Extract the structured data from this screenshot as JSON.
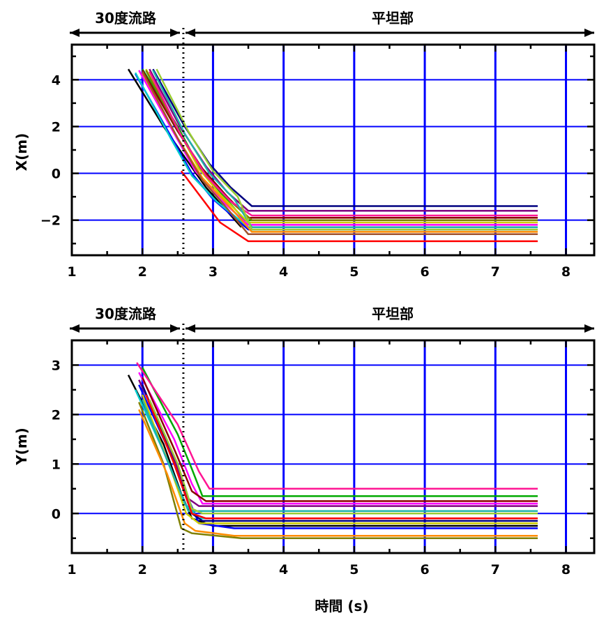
{
  "figure": {
    "xlabel": "時間 (s)",
    "regions": {
      "slope_label": "30度流路",
      "flat_label": "平坦部",
      "boundary_x": 2.58
    }
  },
  "chart_data": [
    {
      "type": "line",
      "ylabel": "X(m)",
      "xlim": [
        1,
        8.4
      ],
      "ylim": [
        -3.5,
        5.5
      ],
      "xticks": [
        1,
        2,
        3,
        4,
        5,
        6,
        7,
        8
      ],
      "yticks": [
        -2,
        0,
        2,
        4
      ],
      "grid": true,
      "series": [
        {
          "color": "#000000",
          "points": [
            [
              1.8,
              4.45
            ],
            [
              2.3,
              2.0
            ],
            [
              2.55,
              0.9
            ],
            [
              2.9,
              -0.6
            ],
            [
              3.4,
              -2.3
            ]
          ]
        },
        {
          "color": "#0000ff",
          "points": [
            [
              1.9,
              4.25
            ],
            [
              2.4,
              1.6
            ],
            [
              2.7,
              0.0
            ],
            [
              3.0,
              -1.1
            ],
            [
              3.5,
              -2.4
            ],
            [
              7.6,
              -2.4
            ]
          ]
        },
        {
          "color": "#00aa00",
          "points": [
            [
              2.0,
              4.45
            ],
            [
              2.5,
              2.0
            ],
            [
              2.8,
              0.3
            ],
            [
              3.1,
              -0.8
            ],
            [
              3.45,
              -2.0
            ],
            [
              7.6,
              -2.0
            ]
          ]
        },
        {
          "color": "#ff00ff",
          "points": [
            [
              1.95,
              4.4
            ],
            [
              2.45,
              1.7
            ],
            [
              2.75,
              0.1
            ],
            [
              3.1,
              -1.1
            ],
            [
              3.5,
              -2.2
            ],
            [
              7.6,
              -2.2
            ]
          ]
        },
        {
          "color": "#00cccc",
          "points": [
            [
              1.9,
              4.3
            ],
            [
              2.4,
              1.5
            ],
            [
              2.7,
              -0.1
            ],
            [
              3.05,
              -1.2
            ],
            [
              3.5,
              -2.3
            ],
            [
              7.6,
              -2.3
            ]
          ]
        },
        {
          "color": "#cccc00",
          "points": [
            [
              2.05,
              4.45
            ],
            [
              2.5,
              1.9
            ],
            [
              2.8,
              0.2
            ],
            [
              3.1,
              -0.9
            ],
            [
              3.5,
              -2.1
            ],
            [
              7.6,
              -2.1
            ]
          ]
        },
        {
          "color": "#8b0000",
          "points": [
            [
              2.0,
              4.4
            ],
            [
              2.5,
              1.8
            ],
            [
              2.85,
              0.2
            ],
            [
              3.2,
              -1.0
            ],
            [
              3.5,
              -1.9
            ],
            [
              7.6,
              -1.9
            ]
          ]
        },
        {
          "color": "#800080",
          "points": [
            [
              2.1,
              4.45
            ],
            [
              2.55,
              1.9
            ],
            [
              2.9,
              0.3
            ],
            [
              3.2,
              -0.8
            ],
            [
              3.5,
              -1.6
            ],
            [
              7.6,
              -1.6
            ]
          ]
        },
        {
          "color": "#000080",
          "points": [
            [
              2.15,
              4.45
            ],
            [
              2.6,
              2.0
            ],
            [
              2.95,
              0.4
            ],
            [
              3.25,
              -0.6
            ],
            [
              3.55,
              -1.4
            ],
            [
              7.6,
              -1.4
            ]
          ]
        },
        {
          "color": "#808000",
          "points": [
            [
              2.05,
              4.4
            ],
            [
              2.55,
              1.6
            ],
            [
              2.9,
              -0.1
            ],
            [
              3.25,
              -1.2
            ],
            [
              3.55,
              -2.0
            ],
            [
              7.6,
              -2.0
            ]
          ]
        },
        {
          "color": "#ff8c00",
          "points": [
            [
              2.0,
              4.3
            ],
            [
              2.5,
              1.5
            ],
            [
              2.85,
              -0.2
            ],
            [
              3.2,
              -1.3
            ],
            [
              3.55,
              -2.5
            ],
            [
              7.6,
              -2.5
            ]
          ]
        },
        {
          "color": "#ff1493",
          "points": [
            [
              2.1,
              4.35
            ],
            [
              2.55,
              1.6
            ],
            [
              2.9,
              -0.1
            ],
            [
              3.25,
              -1.2
            ],
            [
              3.55,
              -1.8
            ],
            [
              7.6,
              -1.8
            ]
          ]
        },
        {
          "color": "#20b2aa",
          "points": [
            [
              2.15,
              4.4
            ],
            [
              2.6,
              1.7
            ],
            [
              2.95,
              0.0
            ],
            [
              3.3,
              -1.1
            ],
            [
              3.55,
              -2.3
            ],
            [
              7.6,
              -2.3
            ]
          ]
        },
        {
          "color": "#9acd32",
          "points": [
            [
              2.2,
              4.45
            ],
            [
              2.65,
              1.8
            ],
            [
              3.0,
              0.1
            ],
            [
              3.35,
              -1.0
            ],
            [
              3.55,
              -2.4
            ],
            [
              7.6,
              -2.4
            ]
          ]
        },
        {
          "color": "#a0522d",
          "points": [
            [
              2.0,
              4.35
            ],
            [
              2.5,
              1.5
            ],
            [
              2.85,
              -0.3
            ],
            [
              3.2,
              -1.5
            ],
            [
              3.5,
              -2.6
            ],
            [
              7.6,
              -2.6
            ]
          ]
        },
        {
          "color": "#ff0000",
          "points": [
            [
              2.55,
              0.1
            ],
            [
              2.8,
              -0.9
            ],
            [
              3.1,
              -2.1
            ],
            [
              3.5,
              -2.9
            ],
            [
              7.6,
              -2.9
            ]
          ]
        }
      ]
    },
    {
      "type": "line",
      "ylabel": "Y(m)",
      "xlim": [
        1,
        8.4
      ],
      "ylim": [
        -0.8,
        3.5
      ],
      "xticks": [
        1,
        2,
        3,
        4,
        5,
        6,
        7,
        8
      ],
      "yticks": [
        0,
        1,
        2,
        3
      ],
      "grid": true,
      "series": [
        {
          "color": "#000000",
          "points": [
            [
              1.8,
              2.8
            ],
            [
              2.3,
              1.4
            ],
            [
              2.55,
              0.4
            ],
            [
              2.7,
              -0.1
            ],
            [
              3.0,
              -0.25
            ],
            [
              7.6,
              -0.25
            ]
          ]
        },
        {
          "color": "#0000ff",
          "points": [
            [
              1.95,
              2.6
            ],
            [
              2.4,
              1.2
            ],
            [
              2.65,
              0.3
            ],
            [
              2.8,
              -0.2
            ],
            [
              3.3,
              -0.3
            ],
            [
              7.6,
              -0.3
            ]
          ]
        },
        {
          "color": "#00aa00",
          "points": [
            [
              2.0,
              2.95
            ],
            [
              2.5,
              1.6
            ],
            [
              2.7,
              0.9
            ],
            [
              2.85,
              0.35
            ],
            [
              7.6,
              0.35
            ]
          ]
        },
        {
          "color": "#ff00ff",
          "points": [
            [
              1.95,
              2.85
            ],
            [
              2.45,
              1.5
            ],
            [
              2.7,
              0.6
            ],
            [
              2.85,
              0.2
            ],
            [
              7.6,
              0.2
            ]
          ]
        },
        {
          "color": "#00cccc",
          "points": [
            [
              1.9,
              2.5
            ],
            [
              2.35,
              1.1
            ],
            [
              2.6,
              0.2
            ],
            [
              2.8,
              -0.1
            ],
            [
              7.6,
              -0.1
            ]
          ]
        },
        {
          "color": "#cccc00",
          "points": [
            [
              2.0,
              2.4
            ],
            [
              2.4,
              0.9
            ],
            [
              2.62,
              0.0
            ],
            [
              2.8,
              -0.2
            ],
            [
              7.6,
              -0.2
            ]
          ]
        },
        {
          "color": "#8b0000",
          "points": [
            [
              2.0,
              2.75
            ],
            [
              2.45,
              1.3
            ],
            [
              2.7,
              0.45
            ],
            [
              2.9,
              0.25
            ],
            [
              7.6,
              0.25
            ]
          ]
        },
        {
          "color": "#800080",
          "points": [
            [
              1.95,
              2.7
            ],
            [
              2.4,
              1.3
            ],
            [
              2.65,
              0.3
            ],
            [
              2.8,
              0.15
            ],
            [
              7.6,
              0.15
            ]
          ]
        },
        {
          "color": "#000080",
          "points": [
            [
              2.0,
              2.6
            ],
            [
              2.4,
              1.2
            ],
            [
              2.7,
              0.0
            ],
            [
              2.85,
              -0.15
            ],
            [
              7.6,
              -0.15
            ]
          ]
        },
        {
          "color": "#808000",
          "points": [
            [
              1.95,
              2.25
            ],
            [
              2.3,
              1.0
            ],
            [
              2.55,
              -0.3
            ],
            [
              2.7,
              -0.4
            ],
            [
              3.4,
              -0.5
            ],
            [
              7.6,
              -0.5
            ]
          ]
        },
        {
          "color": "#ff8c00",
          "points": [
            [
              1.95,
              2.1
            ],
            [
              2.35,
              0.8
            ],
            [
              2.6,
              -0.2
            ],
            [
              2.75,
              -0.35
            ],
            [
              3.3,
              -0.45
            ],
            [
              7.6,
              -0.45
            ]
          ]
        },
        {
          "color": "#ff1493",
          "points": [
            [
              1.92,
              3.05
            ],
            [
              2.5,
              1.8
            ],
            [
              2.8,
              0.85
            ],
            [
              2.95,
              0.5
            ],
            [
              7.6,
              0.5
            ]
          ]
        },
        {
          "color": "#20b2aa",
          "points": [
            [
              2.0,
              2.3
            ],
            [
              2.4,
              0.9
            ],
            [
              2.65,
              0.05
            ],
            [
              2.85,
              0.05
            ],
            [
              7.6,
              0.05
            ]
          ]
        },
        {
          "color": "#ff0000",
          "points": [
            [
              2.05,
              2.4
            ],
            [
              2.45,
              1.0
            ],
            [
              2.7,
              0.0
            ],
            [
              2.9,
              -0.1
            ],
            [
              7.6,
              -0.1
            ]
          ]
        },
        {
          "color": "#9acd32",
          "points": [
            [
              2.1,
              2.3
            ],
            [
              2.5,
              1.0
            ],
            [
              2.7,
              0.1
            ],
            [
              2.85,
              0.0
            ],
            [
              7.6,
              0.0
            ]
          ]
        }
      ]
    }
  ]
}
